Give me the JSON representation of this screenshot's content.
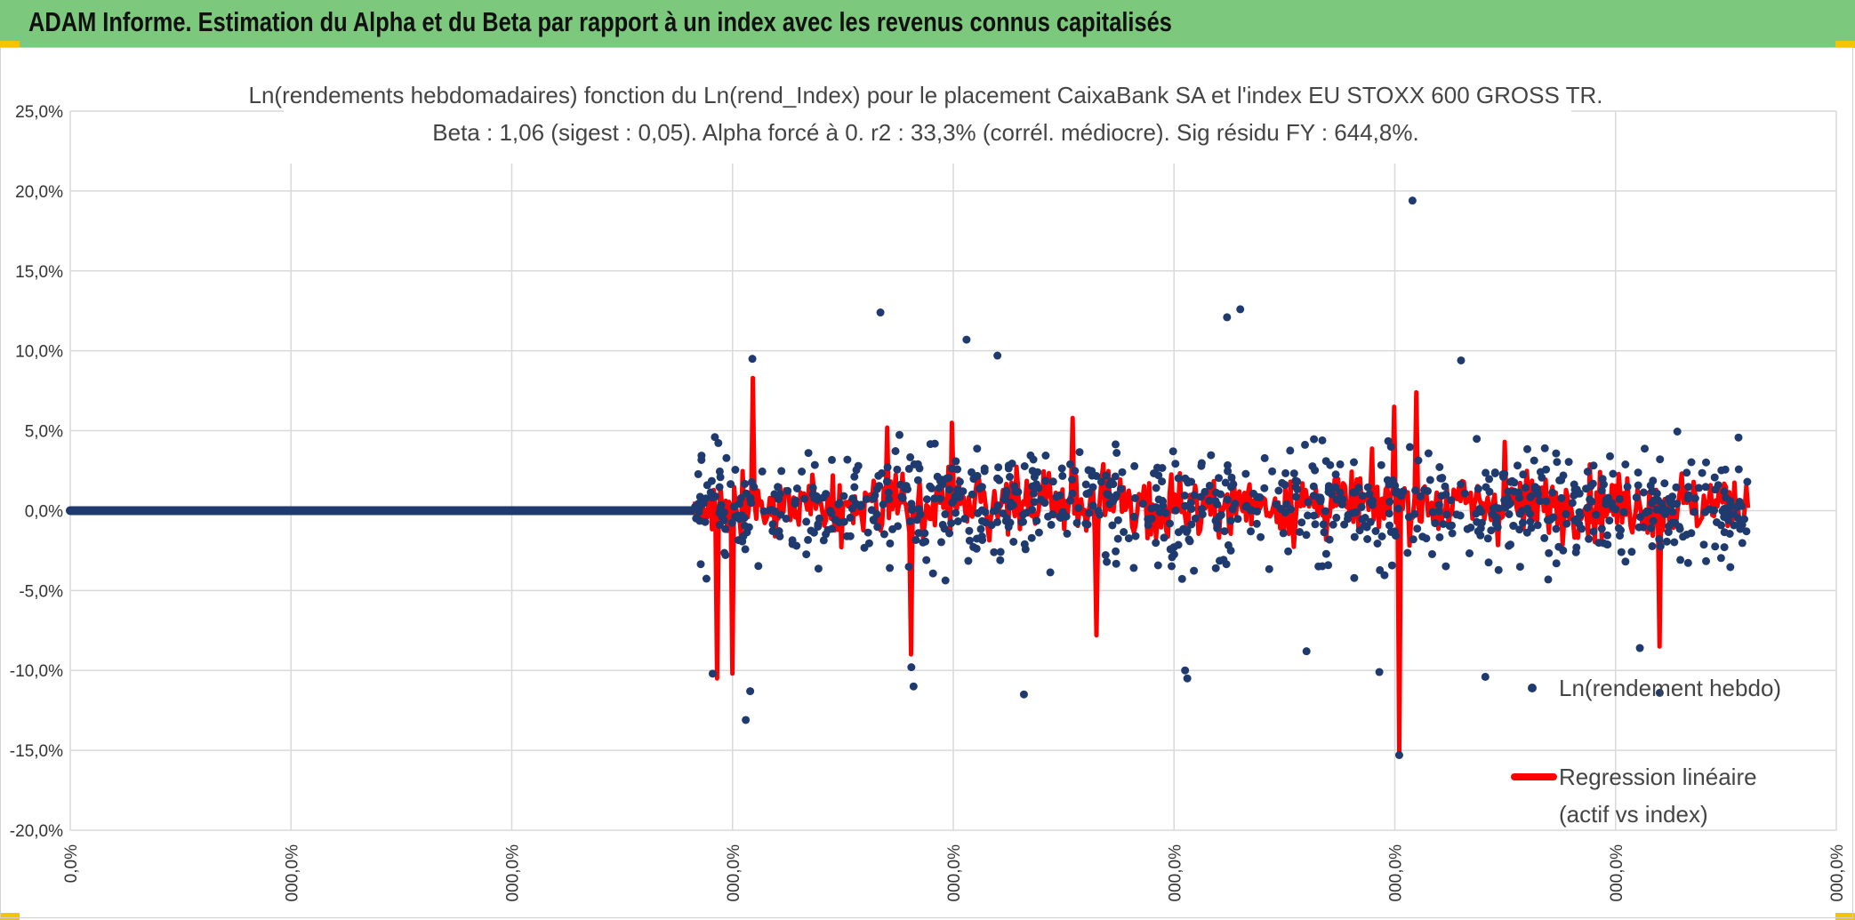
{
  "banner": {
    "title": "ADAM Informe. Estimation du Alpha et du Beta par rapport à un index avec les revenus connus capitalisés"
  },
  "colors": {
    "banner": "#7cc87c",
    "points": "#1f3a6e",
    "regression": "#ff0000",
    "grid": "#d9d9d9"
  },
  "chart_data": {
    "type": "scatter",
    "title": "Ln(rendements hebdomadaires) fonction du Ln(rend_Index) pour le placement CaixaBank SA et l'index EU STOXX 600 GROSS TR.",
    "subtitle": "Beta : 1,06 (sigest : 0,05). Alpha forcé à 0. r2 : 33,3% (corrél. médiocre). Sig résidu FY : 644,8%.",
    "ylim": [
      -0.2,
      0.25
    ],
    "xlim": [
      0,
      8
    ],
    "y_tick_values": [
      0.25,
      0.2,
      0.15,
      0.1,
      0.05,
      0.0,
      -0.05,
      -0.1,
      -0.15,
      -0.2
    ],
    "y_tick_labels": [
      "25,0%",
      "20,0%",
      "15,0%",
      "10,0%",
      "5,0%",
      "0,0%",
      "-5,0%",
      "-10,0%",
      "-15,0%",
      "-20,0%"
    ],
    "x_tick_values": [
      0,
      1,
      2,
      3,
      4,
      5,
      6,
      7,
      8
    ],
    "x_tick_labels": [
      "0,0%",
      "000,0%",
      "000,0%",
      "000,0%",
      "000,0%",
      "000,0%",
      "000,0%",
      "000,0%",
      "000,0%"
    ],
    "zero_segment": [
      0.0,
      2.83
    ],
    "data_range": [
      2.83,
      7.6
    ],
    "series": [
      {
        "name": "Ln(rendement hebdo)",
        "kind": "points"
      },
      {
        "name": "Regression linéaire (actif vs index)",
        "kind": "line",
        "beta": 1.06
      }
    ],
    "legend": [
      {
        "line1": "Ln(rendement hebdo)",
        "line2": ""
      },
      {
        "line1": "Regression linéaire",
        "line2": "(actif vs index)"
      }
    ],
    "notable_points": [
      {
        "x": 6.08,
        "y": 0.194
      },
      {
        "x": 5.3,
        "y": 0.126
      },
      {
        "x": 3.67,
        "y": 0.124
      },
      {
        "x": 5.24,
        "y": 0.121
      },
      {
        "x": 4.06,
        "y": 0.107
      },
      {
        "x": 4.2,
        "y": 0.097
      },
      {
        "x": 3.09,
        "y": 0.095
      },
      {
        "x": 6.3,
        "y": 0.094
      },
      {
        "x": 2.92,
        "y": 0.046
      },
      {
        "x": 3.06,
        "y": -0.131
      },
      {
        "x": 3.08,
        "y": -0.113
      },
      {
        "x": 6.02,
        "y": -0.153
      },
      {
        "x": 4.32,
        "y": -0.115
      },
      {
        "x": 3.82,
        "y": -0.11
      },
      {
        "x": 7.2,
        "y": -0.114
      },
      {
        "x": 5.93,
        "y": -0.101
      },
      {
        "x": 2.91,
        "y": -0.102
      },
      {
        "x": 5.06,
        "y": -0.105
      },
      {
        "x": 5.05,
        "y": -0.1
      },
      {
        "x": 6.41,
        "y": -0.104
      },
      {
        "x": 7.11,
        "y": -0.086
      },
      {
        "x": 3.81,
        "y": -0.098
      },
      {
        "x": 5.6,
        "y": -0.088
      }
    ],
    "notable_spikes": [
      {
        "x": 6.02,
        "y": -0.152
      },
      {
        "x": 2.93,
        "y": -0.105
      },
      {
        "x": 3.0,
        "y": -0.102
      },
      {
        "x": 3.09,
        "y": 0.083
      },
      {
        "x": 6.1,
        "y": 0.074
      },
      {
        "x": 6.0,
        "y": 0.065
      },
      {
        "x": 3.99,
        "y": 0.055
      },
      {
        "x": 4.54,
        "y": 0.058
      },
      {
        "x": 3.81,
        "y": -0.09
      },
      {
        "x": 4.65,
        "y": -0.078
      },
      {
        "x": 6.5,
        "y": 0.043
      },
      {
        "x": 7.2,
        "y": -0.085
      },
      {
        "x": 3.7,
        "y": 0.052
      }
    ]
  }
}
